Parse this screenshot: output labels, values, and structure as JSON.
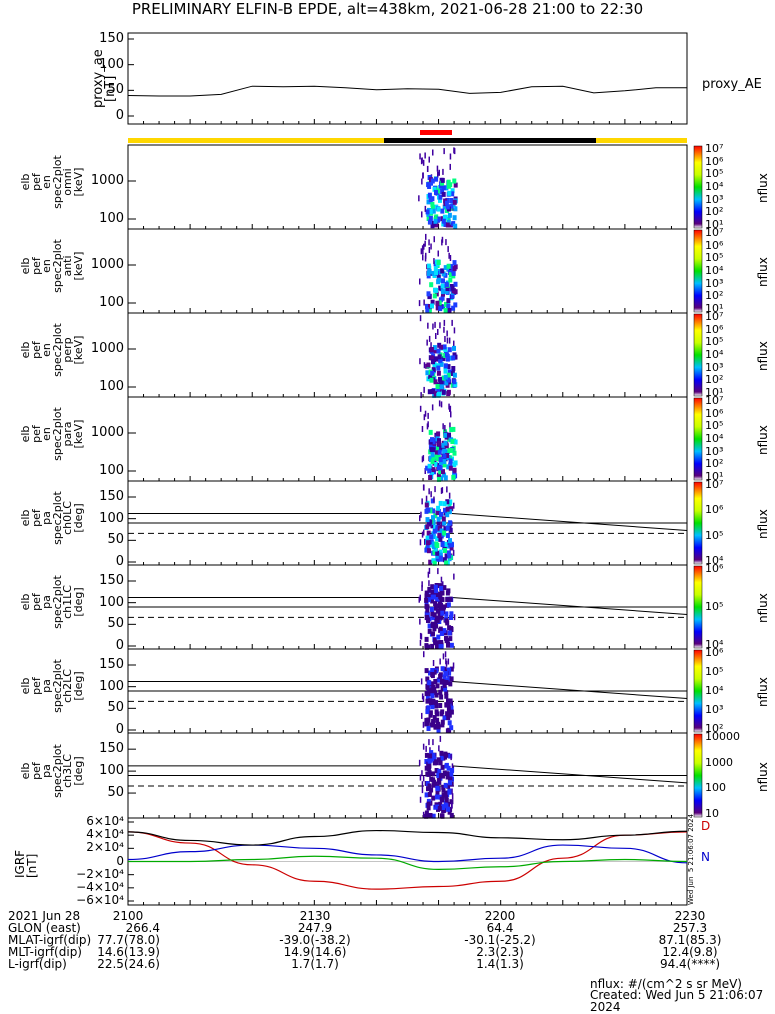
{
  "title": "PRELIMINARY ELFIN-B EPDE, alt=438km, 2021-06-28 21:00 to 22:30",
  "chart_data": [
    {
      "type": "line",
      "ylabel": [
        "proxy_ae",
        "[nT]"
      ],
      "legend": "proxy_AE",
      "yticks": [
        "150",
        "100",
        "50",
        "0"
      ],
      "ylim": [
        0,
        150
      ],
      "x": [
        0,
        5,
        10,
        15,
        20,
        25,
        30,
        35,
        40,
        45,
        50,
        55,
        60,
        65,
        70,
        75,
        80,
        85,
        90
      ],
      "values": [
        40,
        39,
        39,
        42,
        58,
        57,
        58,
        55,
        51,
        53,
        52,
        44,
        46,
        57,
        58,
        45,
        49,
        55,
        55
      ]
    },
    {
      "type": "heatmap",
      "ylabel": [
        "elb",
        "pef",
        "en",
        "spec2plot",
        "omni",
        "[keV]"
      ],
      "yticks": [
        "1000",
        "100"
      ],
      "cbar_ticks": [
        "10^7",
        "10^6",
        "10^5",
        "10^4",
        "10^3",
        "10^2",
        "10^1"
      ],
      "cbar_label": "nflux"
    },
    {
      "type": "heatmap",
      "ylabel": [
        "elb",
        "pef",
        "en",
        "spec2plot",
        "anti",
        "[keV]"
      ],
      "yticks": [
        "1000",
        "100"
      ],
      "cbar_ticks": [
        "10^7",
        "10^6",
        "10^5",
        "10^4",
        "10^3",
        "10^2",
        "10^1"
      ],
      "cbar_label": "nflux"
    },
    {
      "type": "heatmap",
      "ylabel": [
        "elb",
        "pef",
        "en",
        "spec2plot",
        "perp",
        "[keV]"
      ],
      "yticks": [
        "1000",
        "100"
      ],
      "cbar_ticks": [
        "10^7",
        "10^6",
        "10^5",
        "10^4",
        "10^3",
        "10^2",
        "10^1"
      ],
      "cbar_label": "nflux"
    },
    {
      "type": "heatmap",
      "ylabel": [
        "elb",
        "pef",
        "en",
        "spec2plot",
        "para",
        "[keV]"
      ],
      "yticks": [
        "1000",
        "100"
      ],
      "cbar_ticks": [
        "10^7",
        "10^6",
        "10^5",
        "10^4",
        "10^3",
        "10^2",
        "10^1"
      ],
      "cbar_label": "nflux"
    },
    {
      "type": "heatmap",
      "ylabel": [
        "elb",
        "pef",
        "pa",
        "spec2plot",
        "ch0LC",
        "[deg]"
      ],
      "yticks": [
        "150",
        "100",
        "50",
        "0"
      ],
      "cbar_ticks": [
        "10^7",
        "10^6",
        "10^5",
        "10^4"
      ],
      "cbar_label": "nflux"
    },
    {
      "type": "heatmap",
      "ylabel": [
        "elb",
        "pef",
        "pa",
        "spec2plot",
        "ch1LC",
        "[deg]"
      ],
      "yticks": [
        "150",
        "100",
        "50",
        "0"
      ],
      "cbar_ticks": [
        "10^6",
        "10^5",
        "10^4"
      ],
      "cbar_label": "nflux"
    },
    {
      "type": "heatmap",
      "ylabel": [
        "elb",
        "pef",
        "pa",
        "spec2plot",
        "ch2LC",
        "[deg]"
      ],
      "yticks": [
        "150",
        "100",
        "50",
        "0"
      ],
      "cbar_ticks": [
        "10^6",
        "10^5",
        "10^4",
        "10^3",
        "10^2"
      ],
      "cbar_label": "nflux"
    },
    {
      "type": "heatmap",
      "ylabel": [
        "elb",
        "pef",
        "pa",
        "spec2plot",
        "ch3LC",
        "[deg]"
      ],
      "yticks": [
        "150",
        "100",
        "50"
      ],
      "cbar_ticks": [
        "10000",
        "1000",
        "100",
        "10"
      ],
      "cbar_label": "nflux"
    },
    {
      "type": "line",
      "ylabel": [
        "IGRF",
        "[nT]"
      ],
      "yticks": [
        "6×10^4",
        "4×10^4",
        "2×10^4",
        "0",
        "−2×10^4",
        "−4×10^4",
        "−6×10^4"
      ],
      "ylim": [
        -60000,
        60000
      ],
      "x": [
        0,
        10,
        20,
        30,
        40,
        50,
        60,
        70,
        80,
        90
      ],
      "series": [
        {
          "name": "D",
          "color": "#cc0000",
          "values": [
            45000,
            28000,
            -5000,
            -30000,
            -42000,
            -38000,
            -30000,
            5000,
            40000,
            45000
          ]
        },
        {
          "name": "N",
          "color": "#0000cc",
          "values": [
            3000,
            15000,
            25000,
            20000,
            10000,
            0,
            5000,
            25000,
            20000,
            -2000
          ]
        },
        {
          "name": "",
          "color": "#00aa00",
          "values": [
            0,
            0,
            3000,
            8000,
            5000,
            -12000,
            -8000,
            0,
            3000,
            0
          ]
        },
        {
          "name": "",
          "color": "#000000",
          "values": [
            45000,
            32000,
            25000,
            38000,
            47000,
            44000,
            36000,
            33000,
            40000,
            46000
          ]
        }
      ]
    }
  ],
  "xticks": [
    "2100",
    "2130",
    "2200",
    "2230"
  ],
  "footer": {
    "date": "2021 Jun 28",
    "rows": [
      {
        "label": "GLON (east)",
        "values": [
          "266.4",
          "247.9",
          "64.4",
          "257.3"
        ]
      },
      {
        "label": "MLAT-igrf(dip)",
        "values": [
          "77.7(78.0)",
          "-39.0(-38.2)",
          "-30.1(-25.2)",
          "87.1(85.3)"
        ]
      },
      {
        "label": "MLT-igrf(dip)",
        "values": [
          "14.6(13.9)",
          "14.9(14.6)",
          "2.3(2.3)",
          "12.4(9.8)"
        ]
      },
      {
        "label": "L-igrf(dip)",
        "values": [
          "22.5(24.6)",
          "1.7(1.7)",
          "1.4(1.3)",
          "94.4(****)"
        ]
      }
    ],
    "units": "nflux: #/(cm^2 s sr MeV)",
    "created": "Created: Wed Jun  5 21:06:07 2024",
    "side_stamp": "Wed Jun  5 21:06:07 2024"
  },
  "colors": {
    "yellow": "#ffd700",
    "black": "#000000",
    "red": "#ff0000"
  }
}
